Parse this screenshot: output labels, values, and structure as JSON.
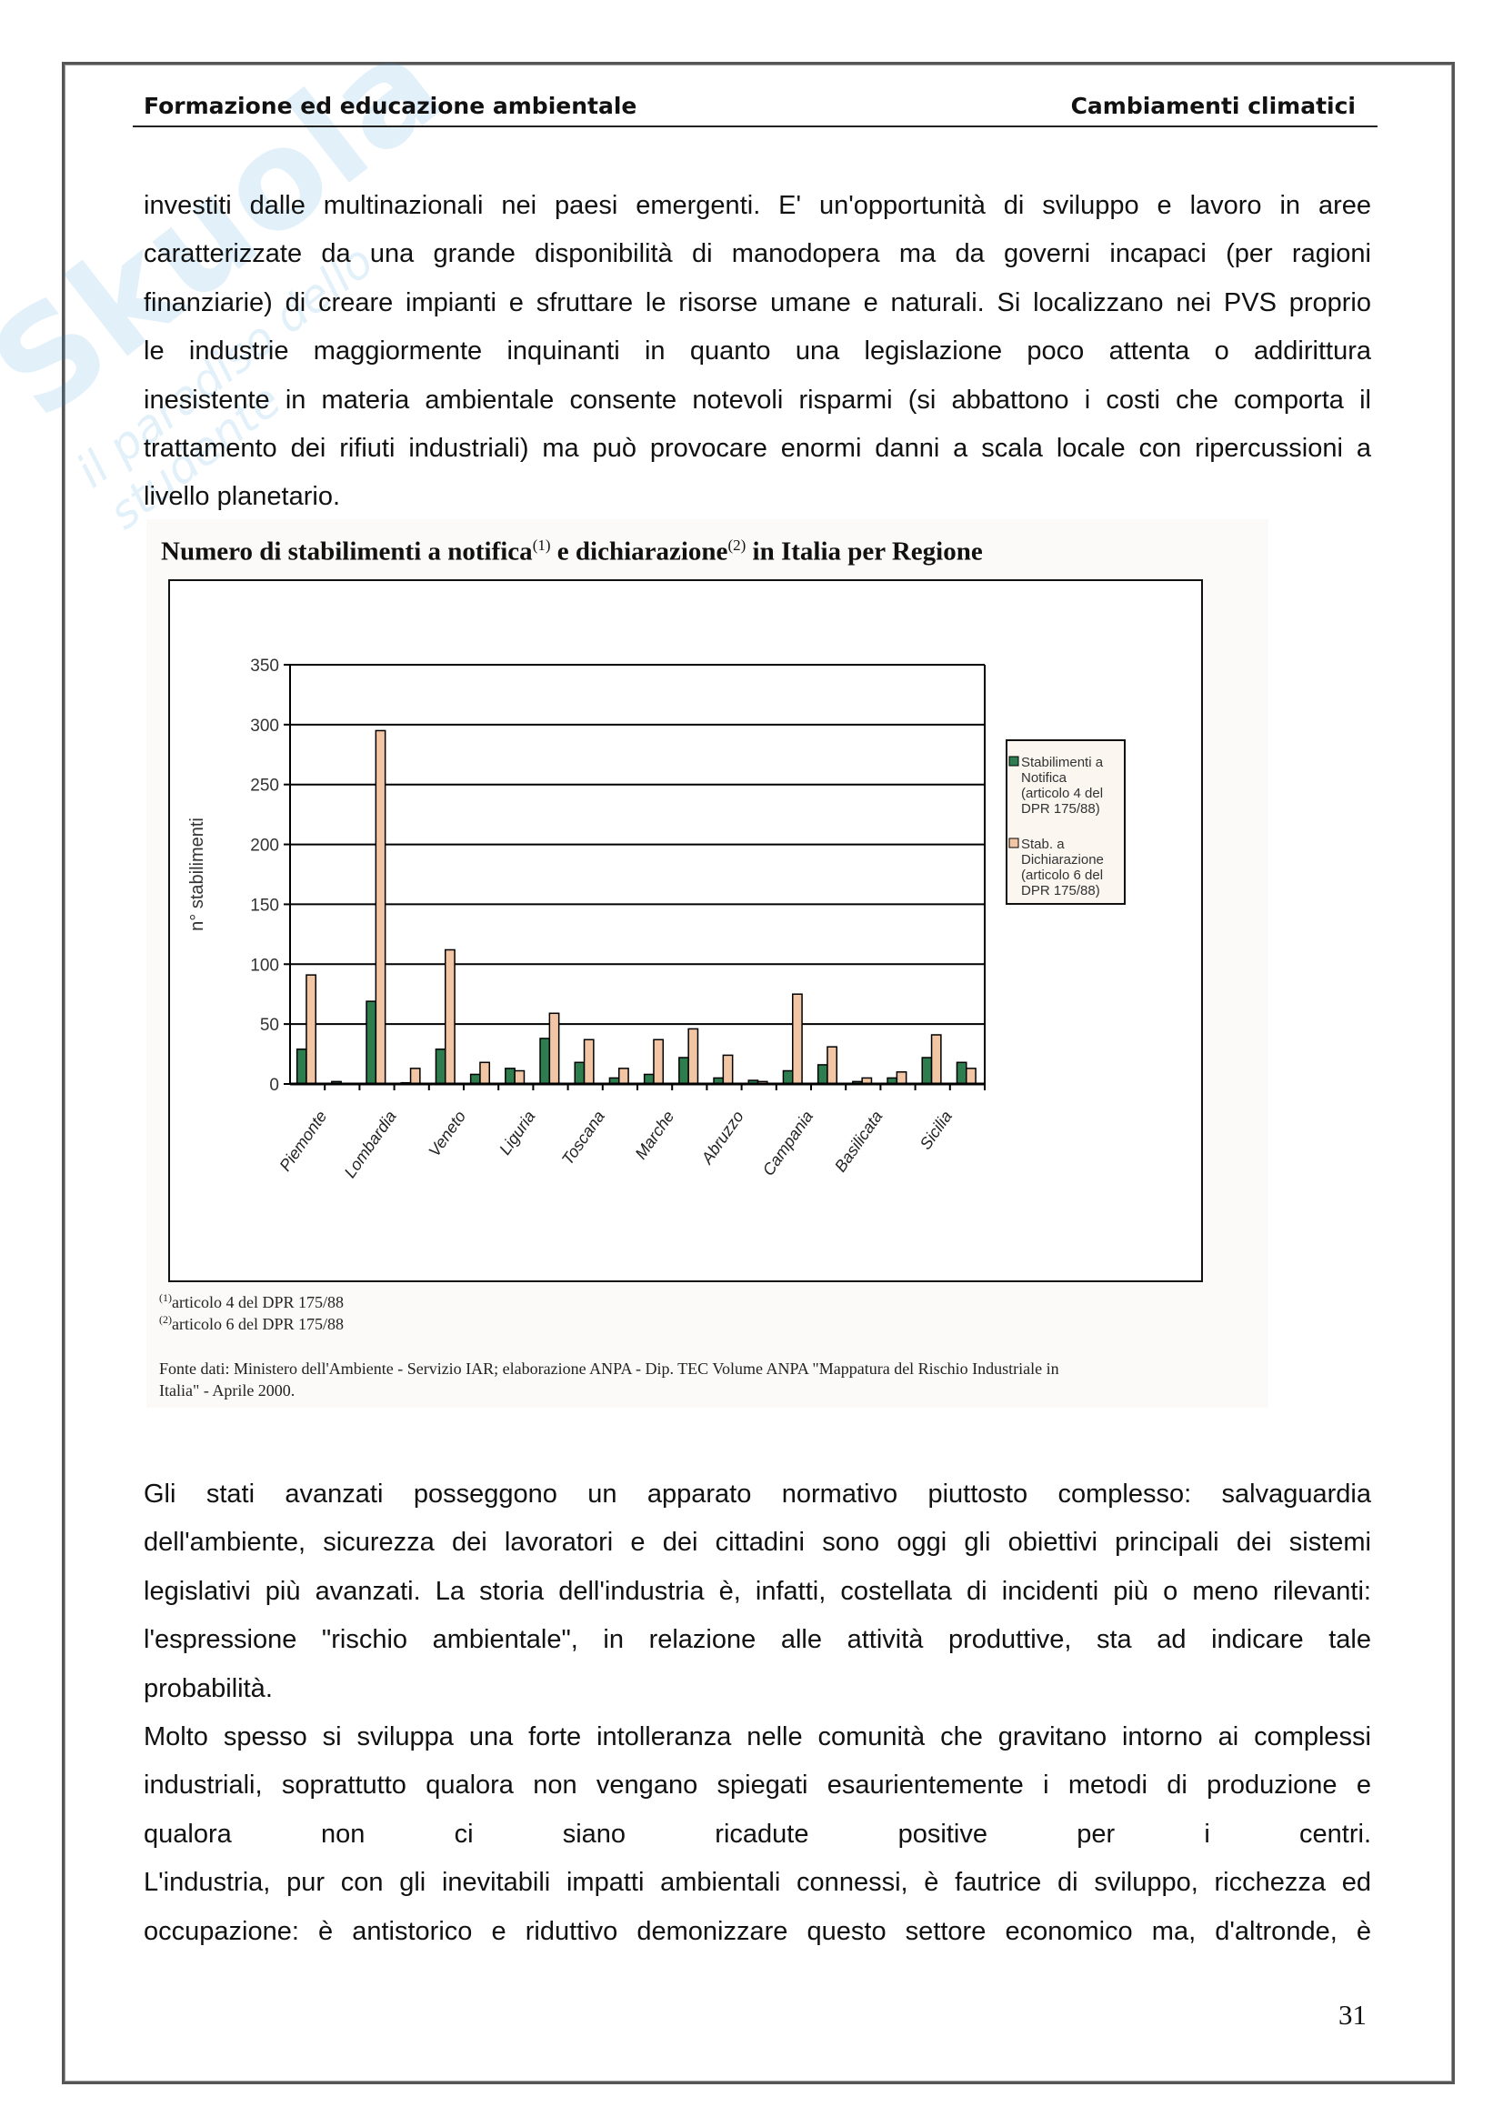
{
  "header": {
    "left": "Formazione ed educazione ambientale",
    "right": "Cambiamenti climatici"
  },
  "watermark": {
    "brand": "Skuola.net",
    "tagline": "il paradiso dello studente"
  },
  "paragraphs_top": [
    {
      "lines": [
        "investiti dalle multinazionali nei paesi emergenti. E' un'opportunità di sviluppo e lavoro in aree",
        "caratterizzate da una grande disponibilità di manodopera ma da governi incapaci (per ragioni",
        "finanziarie) di creare impianti e sfruttare le risorse umane e naturali. Si localizzano nei PVS proprio",
        "le industrie maggiormente inquinanti in quanto una legislazione poco attenta o addirittura",
        "inesistente in materia ambientale consente notevoli risparmi (si abbattono i costi che comporta il",
        "trattamento dei rifiuti industriali) ma può provocare enormi danni a scala locale con ripercussioni a",
        "livello planetario."
      ],
      "last_left": true
    }
  ],
  "paragraphs_bottom": [
    {
      "lines": [
        "Gli stati avanzati posseggono un apparato normativo piuttosto complesso: salvaguardia",
        "dell'ambiente, sicurezza dei lavoratori e dei cittadini sono oggi gli obiettivi principali dei sistemi",
        "legislativi più avanzati. La storia dell'industria è, infatti, costellata di incidenti più o meno rilevanti:",
        "l'espressione \"rischio ambientale\", in relazione alle attività produttive, sta ad indicare tale",
        "probabilità."
      ],
      "last_left": true
    },
    {
      "lines": [
        "Molto spesso si sviluppa una forte intolleranza nelle comunità che gravitano intorno ai complessi",
        "industriali, soprattutto qualora non vengano spiegati esaurientemente i metodi di produzione e",
        "qualora non ci siano ricadute positive per i centri.",
        "L'industria, pur con gli inevitabili impatti ambientali connessi, è fautrice di sviluppo, ricchezza ed",
        "occupazione: è antistorico e riduttivo demonizzare questo settore economico ma, d'altronde, è"
      ],
      "last_left": false
    }
  ],
  "figure": {
    "title_a": "Numero di stabilimenti a notifica",
    "sup1": "(1)",
    "title_b": " e dichiarazione",
    "sup2": "(2)",
    "title_c": " in Italia per Regione",
    "footnote1": "articolo 4 del DPR 175/88",
    "footnote2": "articolo 6 del DPR 175/88",
    "source_line1": "Fonte dati: Ministero dell'Ambiente - Servizio IAR; elaborazione ANPA - Dip. TEC Volume ANPA \"Mappatura del Rischio Industriale in",
    "source_line2": "Italia\" - Aprile 2000."
  },
  "chart_data": {
    "type": "bar",
    "title": "Numero di stabilimenti a notifica(1) e dichiarazione(2) in Italia per Regione",
    "ylabel": "n° stabilimenti",
    "xlabel": "",
    "ylim": [
      0,
      350
    ],
    "yticks": [
      0,
      50,
      100,
      150,
      200,
      250,
      300,
      350
    ],
    "grid": true,
    "legend": "right",
    "categories": [
      "Piemonte",
      "",
      "Lombardia",
      "",
      "Veneto",
      "",
      "Liguria",
      "",
      "Toscana",
      "",
      "Marche",
      "",
      "Abruzzo",
      "",
      "Campania",
      "",
      "Basilicata",
      "",
      "Sicilia",
      ""
    ],
    "series": [
      {
        "name": "Stabilimenti a Notifica (articolo 4 del DPR 175/88)",
        "color": "#2e7d4f",
        "values": [
          29,
          2,
          69,
          1,
          29,
          8,
          13,
          38,
          18,
          5,
          8,
          22,
          5,
          3,
          11,
          16,
          2,
          5,
          22,
          18
        ]
      },
      {
        "name": "Stab. a Dichiarazione (articolo 6 del DPR 175/88)",
        "color": "#f2c6a4",
        "values": [
          91,
          0,
          295,
          13,
          112,
          18,
          11,
          59,
          37,
          13,
          37,
          46,
          24,
          2,
          75,
          31,
          5,
          10,
          41,
          13
        ]
      }
    ],
    "legend_lines": [
      [
        "Stabilimenti a",
        "Notifica",
        "(articolo 4 del",
        "DPR 175/88)"
      ],
      [
        "Stab. a",
        "Dichiarazione",
        "(articolo 6 del",
        "DPR 175/88)"
      ]
    ]
  },
  "page_number": "31"
}
